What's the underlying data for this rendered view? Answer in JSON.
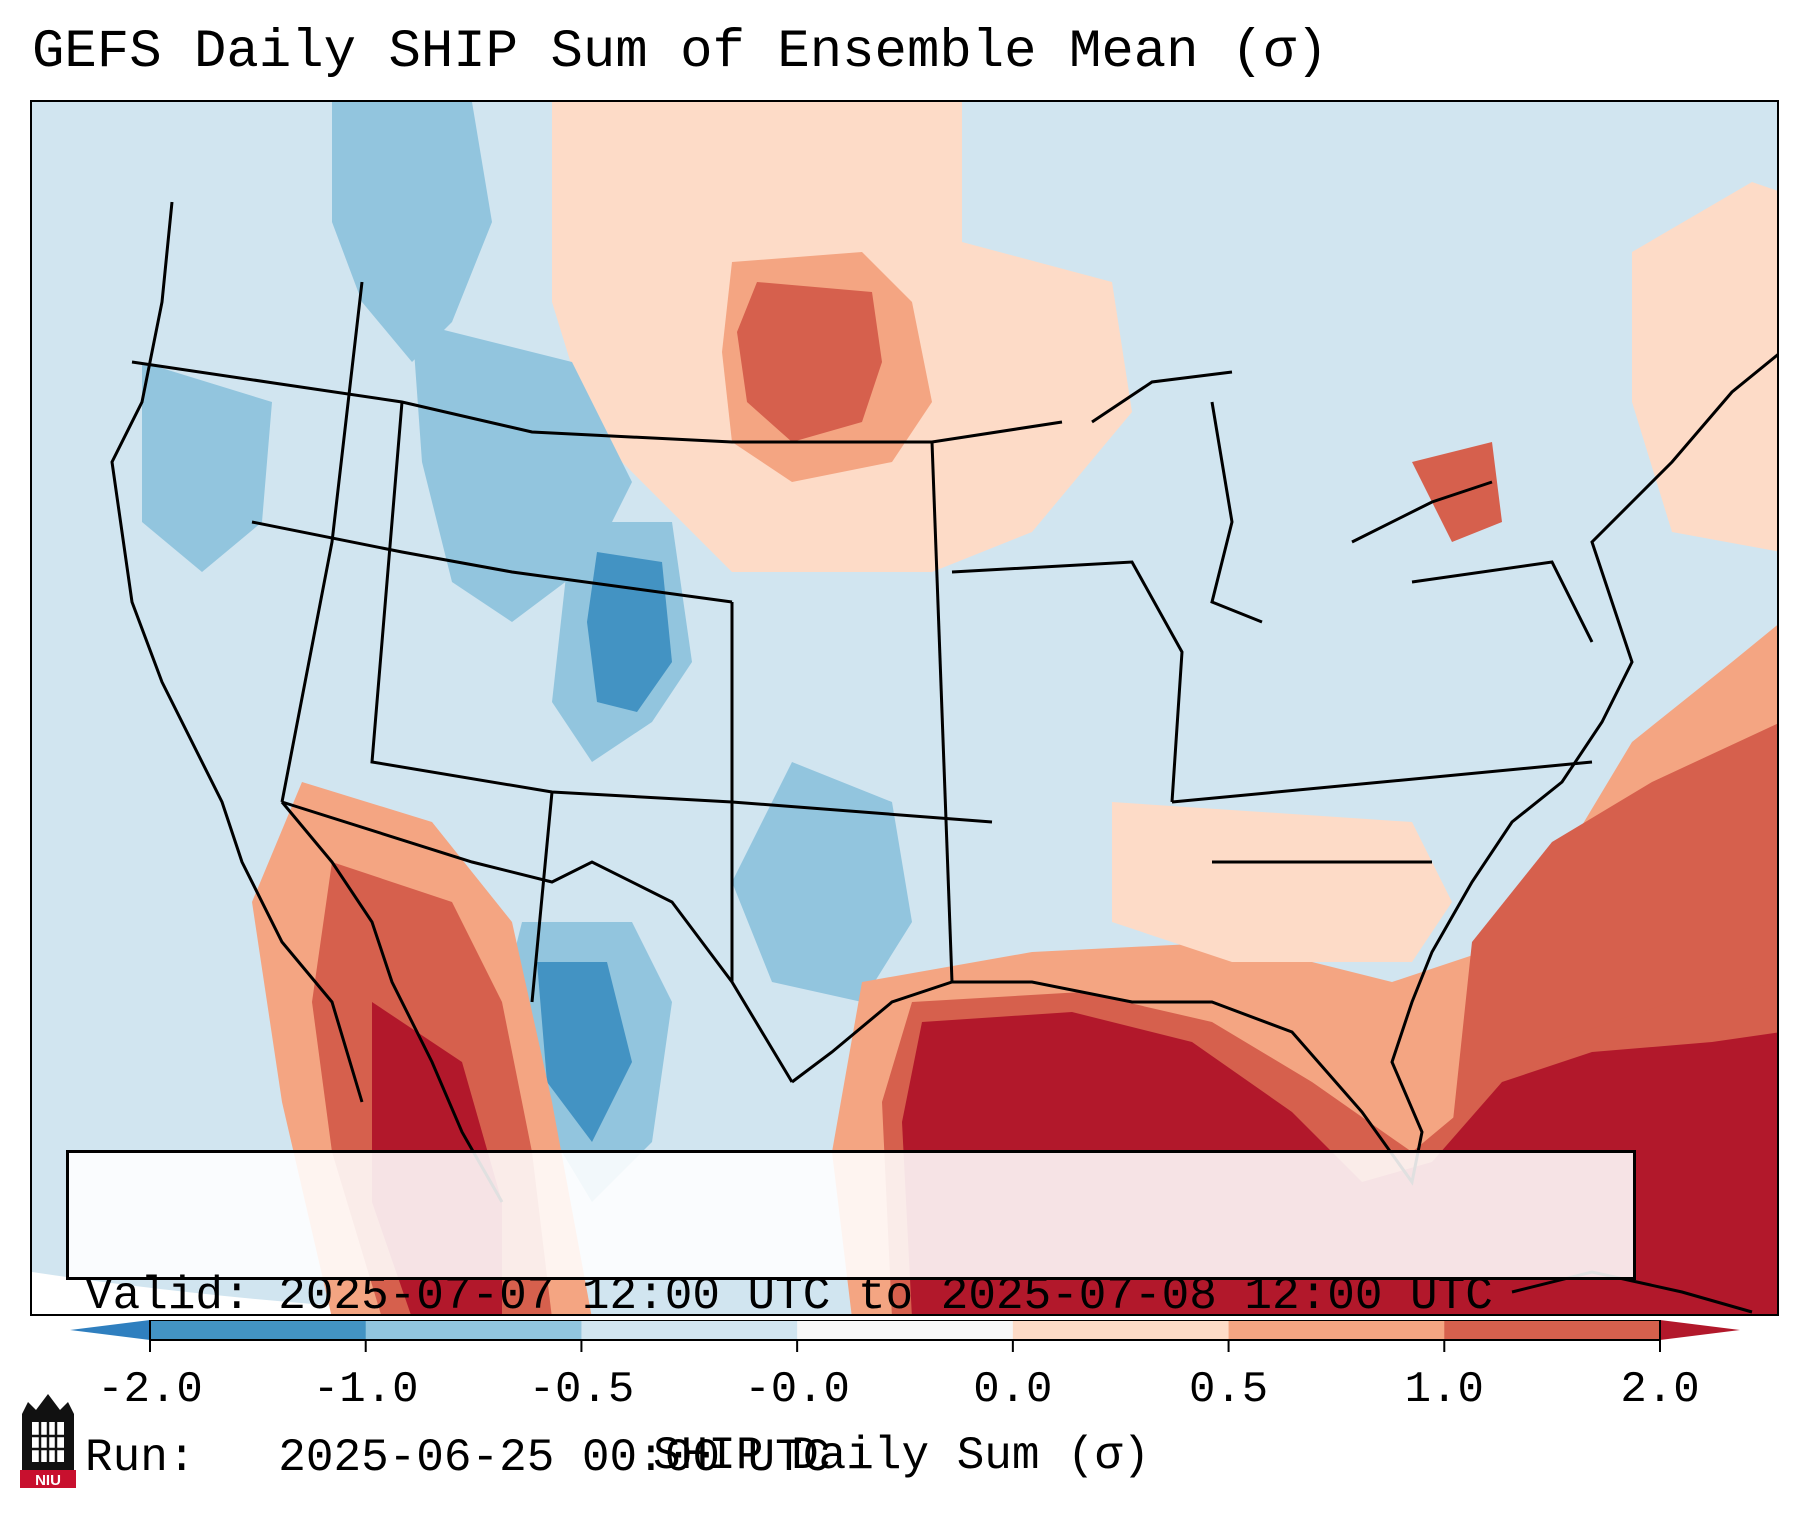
{
  "title": "GEFS Daily SHIP Sum of Ensemble Mean (σ)",
  "info": {
    "valid_label": "Valid:",
    "valid_value": "2025-07-07 12:00 UTC to 2025-07-08 12:00 UTC",
    "run_label": "Run:",
    "run_value": "2025-06-25 00:00 UTC"
  },
  "colorbar": {
    "label": "SHIP Daily Sum (σ)",
    "ticks": [
      "-2.0",
      "-1.0",
      "-0.5",
      "-0.0",
      "0.0",
      "0.5",
      "1.0",
      "2.0"
    ],
    "colors": [
      "#2f7fbf",
      "#4393c3",
      "#92c5de",
      "#d1e5f0",
      "#fddbc7",
      "#f4a582",
      "#d6604d",
      "#b2182b"
    ],
    "extend": "both"
  },
  "map": {
    "region": "Continental United States, southern Canada, northern Mexico, Gulf of Mexico",
    "background_color": "#d1e5f0",
    "features": [
      "coastlines",
      "country borders",
      "state and province borders"
    ]
  },
  "logo": {
    "text": "NIU",
    "colors": {
      "red": "#c8102e",
      "black": "#111111"
    }
  }
}
